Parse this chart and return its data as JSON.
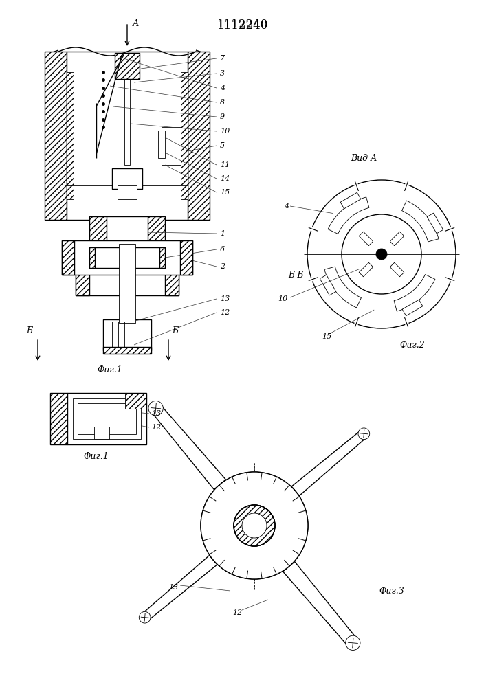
{
  "title": "1112240",
  "bg_color": "#ffffff",
  "line_color": "#000000",
  "fig1_caption": "Фиг.1",
  "fig2_caption": "Фиг.2",
  "fig3_caption": "Фиг.3",
  "vid_a_label": "Вид А",
  "bb_label": "Б-Б",
  "labels_fig1": [
    "7",
    "3",
    "4",
    "8",
    "9",
    "10",
    "5",
    "11",
    "14",
    "15",
    "1",
    "6",
    "2",
    "13",
    "12"
  ],
  "labels_fig2": [
    "4",
    "10",
    "15"
  ],
  "labels_fig3": [
    "13",
    "12"
  ]
}
